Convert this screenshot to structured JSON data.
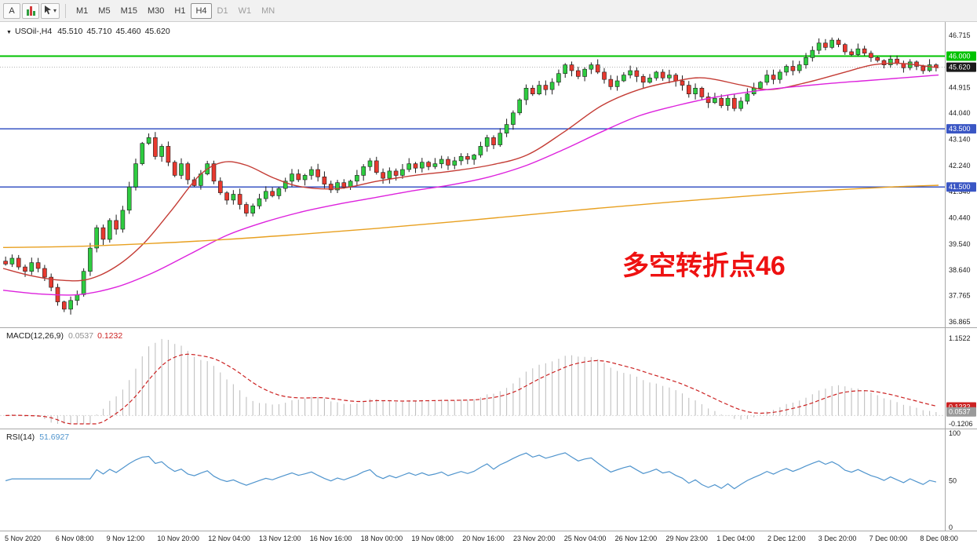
{
  "toolbar": {
    "tools": [
      {
        "label": "A",
        "name": "text-tool"
      },
      {
        "name": "chart-type-tool",
        "icon": "candles-icon"
      },
      {
        "name": "objects-tool",
        "icon": "cursor-icon",
        "caret": "▾"
      }
    ],
    "timeframes": [
      {
        "label": "M1",
        "state": "normal"
      },
      {
        "label": "M5",
        "state": "normal"
      },
      {
        "label": "M15",
        "state": "normal"
      },
      {
        "label": "M30",
        "state": "normal"
      },
      {
        "label": "H1",
        "state": "normal"
      },
      {
        "label": "H4",
        "state": "active"
      },
      {
        "label": "D1",
        "state": "muted"
      },
      {
        "label": "W1",
        "state": "muted"
      },
      {
        "label": "MN",
        "state": "muted"
      }
    ]
  },
  "chart": {
    "symbol_label": "USOil-,H4",
    "ohlc": {
      "open": "45.510",
      "high": "45.710",
      "low": "45.460",
      "close": "45.620"
    },
    "annotation": {
      "text": "多空转折点46",
      "color": "#ee1111"
    },
    "price_scale": [
      "46.715",
      "44.915",
      "44.040",
      "43.140",
      "42.240",
      "41.340",
      "40.440",
      "39.540",
      "38.640",
      "37.765",
      "36.865"
    ],
    "price_tags": [
      {
        "value": "46.000",
        "price": 46.0,
        "color": "#00c200"
      },
      {
        "value": "45.620",
        "price": 45.62,
        "color": "#1a1a1a"
      },
      {
        "value": "43.500",
        "price": 43.5,
        "color": "#3a56c4"
      },
      {
        "value": "41.500",
        "price": 41.5,
        "color": "#3a56c4"
      }
    ],
    "hlines": [
      {
        "value": "46.000",
        "price": 46.0,
        "color": "#00c200",
        "width": 2,
        "dash": "none"
      },
      {
        "value": "45.620",
        "price": 45.62,
        "color": "#b0b0b0",
        "width": 1,
        "dash": "1 2"
      },
      {
        "value": "43.500",
        "price": 43.5,
        "color": "#3a56c4",
        "width": 1.5,
        "dash": "none"
      },
      {
        "value": "41.500",
        "price": 41.5,
        "color": "#3a56c4",
        "width": 1.5,
        "dash": "none"
      }
    ],
    "time_scale": [
      "5 Nov 2020",
      "6 Nov 08:00",
      "9 Nov 12:00",
      "10 Nov 20:00",
      "12 Nov 04:00",
      "13 Nov 12:00",
      "16 Nov 16:00",
      "18 Nov 00:00",
      "19 Nov 08:00",
      "20 Nov 16:00",
      "23 Nov 20:00",
      "25 Nov 04:00",
      "26 Nov 12:00",
      "29 Nov 23:00",
      "1 Dec 04:00",
      "2 Dec 12:00",
      "3 Dec 20:00",
      "7 Dec 00:00",
      "8 Dec 08:00"
    ]
  },
  "chart_data": {
    "type": "candlestick",
    "symbol": "USOil-",
    "timeframe": "H4",
    "price_range": {
      "min": 36.865,
      "max": 46.715
    },
    "open_first": 38.95,
    "up_color": "#2ecc40",
    "down_color": "#e8392f",
    "closes": [
      38.85,
      39.05,
      38.75,
      38.6,
      38.9,
      38.7,
      38.4,
      38.05,
      37.55,
      37.3,
      37.6,
      37.8,
      38.6,
      39.4,
      40.1,
      39.7,
      40.35,
      40.05,
      40.7,
      41.5,
      42.3,
      43.0,
      43.2,
      42.55,
      42.9,
      42.35,
      41.9,
      42.3,
      41.75,
      41.55,
      41.95,
      42.3,
      41.7,
      41.3,
      41.05,
      41.25,
      40.9,
      40.6,
      40.85,
      41.1,
      41.35,
      41.2,
      41.45,
      41.7,
      41.95,
      41.75,
      41.9,
      42.1,
      41.85,
      41.6,
      41.4,
      41.65,
      41.5,
      41.7,
      41.9,
      42.2,
      42.4,
      42.0,
      41.8,
      42.05,
      41.9,
      42.1,
      42.3,
      42.15,
      42.35,
      42.2,
      42.3,
      42.45,
      42.25,
      42.4,
      42.55,
      42.45,
      42.6,
      42.9,
      43.2,
      42.95,
      43.35,
      43.65,
      44.05,
      44.5,
      44.9,
      44.7,
      45.0,
      44.85,
      45.1,
      45.4,
      45.7,
      45.5,
      45.3,
      45.55,
      45.7,
      45.45,
      45.2,
      44.95,
      45.15,
      45.35,
      45.5,
      45.3,
      45.1,
      45.25,
      45.45,
      45.25,
      45.35,
      45.15,
      45.0,
      44.7,
      44.9,
      44.6,
      44.4,
      44.55,
      44.3,
      44.55,
      44.2,
      44.45,
      44.7,
      44.9,
      45.1,
      45.35,
      45.2,
      45.45,
      45.65,
      45.5,
      45.7,
      45.95,
      46.2,
      46.45,
      46.3,
      46.55,
      46.4,
      46.15,
      46.05,
      46.25,
      46.1,
      45.95,
      45.85,
      45.7,
      45.9,
      45.75,
      45.6,
      45.8,
      45.65,
      45.5,
      45.7,
      45.62
    ],
    "moving_averages": [
      {
        "name": "fast-ma-red",
        "color": "#c43c35",
        "points": [
          [
            0,
            38.7
          ],
          [
            0.03,
            38.45
          ],
          [
            0.06,
            38.3
          ],
          [
            0.09,
            38.32
          ],
          [
            0.12,
            38.75
          ],
          [
            0.15,
            39.55
          ],
          [
            0.18,
            40.7
          ],
          [
            0.21,
            41.9
          ],
          [
            0.235,
            42.35
          ],
          [
            0.26,
            42.25
          ],
          [
            0.29,
            41.8
          ],
          [
            0.32,
            41.5
          ],
          [
            0.36,
            41.45
          ],
          [
            0.4,
            41.7
          ],
          [
            0.44,
            41.9
          ],
          [
            0.48,
            42.05
          ],
          [
            0.52,
            42.25
          ],
          [
            0.56,
            42.6
          ],
          [
            0.6,
            43.4
          ],
          [
            0.64,
            44.3
          ],
          [
            0.68,
            44.85
          ],
          [
            0.72,
            45.15
          ],
          [
            0.75,
            45.25
          ],
          [
            0.79,
            45.0
          ],
          [
            0.82,
            44.85
          ],
          [
            0.86,
            45.1
          ],
          [
            0.9,
            45.45
          ],
          [
            0.93,
            45.7
          ],
          [
            0.96,
            45.75
          ],
          [
            1,
            45.6
          ]
        ]
      },
      {
        "name": "mid-ma-magenta",
        "color": "#dd22dd",
        "points": [
          [
            0,
            37.95
          ],
          [
            0.04,
            37.82
          ],
          [
            0.08,
            37.8
          ],
          [
            0.12,
            38.05
          ],
          [
            0.16,
            38.55
          ],
          [
            0.2,
            39.2
          ],
          [
            0.24,
            39.85
          ],
          [
            0.28,
            40.3
          ],
          [
            0.32,
            40.65
          ],
          [
            0.36,
            40.92
          ],
          [
            0.4,
            41.15
          ],
          [
            0.44,
            41.38
          ],
          [
            0.48,
            41.58
          ],
          [
            0.52,
            41.85
          ],
          [
            0.56,
            42.25
          ],
          [
            0.6,
            42.8
          ],
          [
            0.64,
            43.4
          ],
          [
            0.68,
            43.95
          ],
          [
            0.72,
            44.3
          ],
          [
            0.76,
            44.58
          ],
          [
            0.8,
            44.78
          ],
          [
            0.84,
            44.93
          ],
          [
            0.88,
            45.05
          ],
          [
            0.92,
            45.15
          ],
          [
            0.96,
            45.25
          ],
          [
            1,
            45.35
          ]
        ]
      },
      {
        "name": "slow-ma-orange",
        "color": "#e8a020",
        "points": [
          [
            0,
            39.42
          ],
          [
            0.08,
            39.46
          ],
          [
            0.16,
            39.56
          ],
          [
            0.24,
            39.7
          ],
          [
            0.32,
            39.88
          ],
          [
            0.4,
            40.08
          ],
          [
            0.48,
            40.3
          ],
          [
            0.56,
            40.54
          ],
          [
            0.64,
            40.78
          ],
          [
            0.72,
            41.0
          ],
          [
            0.8,
            41.2
          ],
          [
            0.88,
            41.38
          ],
          [
            0.95,
            41.5
          ],
          [
            1,
            41.56
          ]
        ]
      }
    ],
    "macd": {
      "label": "MACD(12,26,9)",
      "value_main": "0.0537",
      "value_signal": "0.1232",
      "fast": 12,
      "slow": 26,
      "signal": 9,
      "scale_max": 1.1522,
      "scale_min": -0.1206,
      "scale_labels": [
        "1.1522",
        "-0.1206"
      ],
      "hist_color": "#c0c0c0",
      "signal_color": "#cc2222"
    },
    "rsi": {
      "label": "RSI(14)",
      "value": "51.6927",
      "period": 14,
      "scale_labels": [
        "100",
        "50",
        "0"
      ],
      "color": "#4f94cd"
    }
  }
}
